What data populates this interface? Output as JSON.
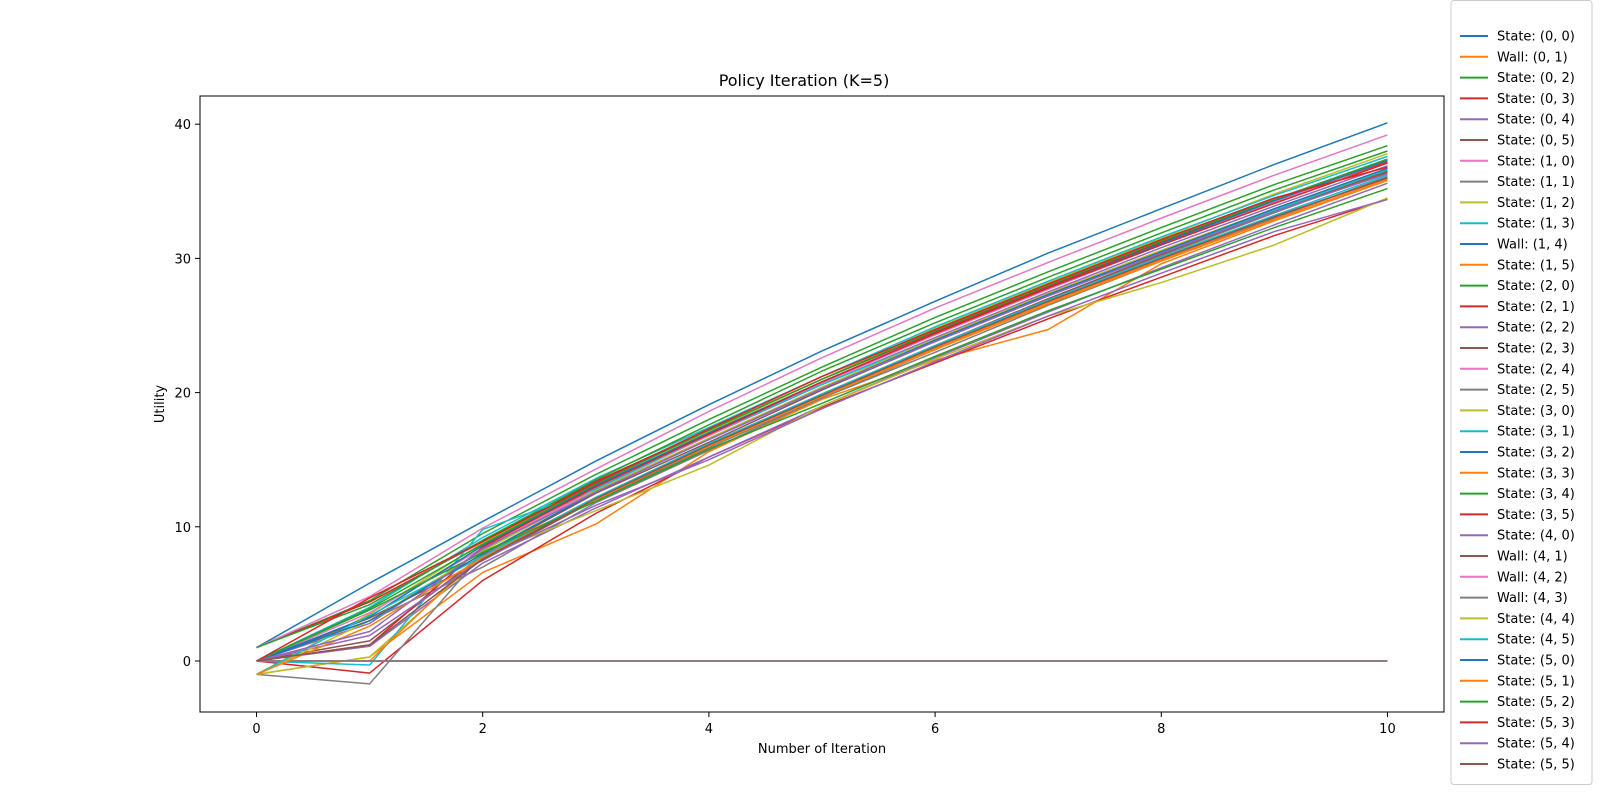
{
  "chart_data": {
    "type": "line",
    "title": "Policy Iteration (K=5)",
    "xlabel": "Number of Iteration",
    "ylabel": "Utility",
    "xlim": [
      -0.5,
      10.5
    ],
    "ylim": [
      -3.8,
      42.1
    ],
    "xticks": [
      0,
      2,
      4,
      6,
      8,
      10
    ],
    "yticks": [
      0,
      10,
      20,
      30,
      40
    ],
    "grid": false,
    "legend_position": "outside-right",
    "x": [
      0,
      1,
      2,
      3,
      4,
      5,
      6,
      7,
      8,
      9,
      10
    ],
    "colors": [
      "#1f77b4",
      "#ff7f0e",
      "#2ca02c",
      "#d62728",
      "#9467bd",
      "#8c564b",
      "#e377c2",
      "#7f7f7f",
      "#bcbd22",
      "#17becf"
    ],
    "series": [
      {
        "name": "State: (0, 0)",
        "values": [
          1.0,
          5.8,
          10.4,
          14.9,
          19.1,
          23.1,
          26.8,
          30.4,
          33.7,
          37.0,
          40.1
        ]
      },
      {
        "name": "Wall: (0, 1)",
        "values": [
          0,
          0,
          0,
          0,
          0,
          0,
          0,
          0,
          0,
          0,
          0
        ]
      },
      {
        "name": "State: (0, 2)",
        "values": [
          1.0,
          4.5,
          9.5,
          13.9,
          18.0,
          21.9,
          25.6,
          29.0,
          32.3,
          35.5,
          38.4
        ]
      },
      {
        "name": "State: (0, 3)",
        "values": [
          1.0,
          4.4,
          8.9,
          13.4,
          17.2,
          21.0,
          24.5,
          27.9,
          31.2,
          34.3,
          37.2
        ]
      },
      {
        "name": "State: (0, 4)",
        "values": [
          0.0,
          2.8,
          8.3,
          12.9,
          16.8,
          20.6,
          24.1,
          27.5,
          30.8,
          33.9,
          36.9
        ]
      },
      {
        "name": "State: (0, 5)",
        "values": [
          0.0,
          1.5,
          7.9,
          12.5,
          16.3,
          20.2,
          23.8,
          27.2,
          30.4,
          33.5,
          36.4
        ]
      },
      {
        "name": "State: (1, 0)",
        "values": [
          1.0,
          4.8,
          9.9,
          14.3,
          18.6,
          22.6,
          26.3,
          29.7,
          33.0,
          36.2,
          39.2
        ]
      },
      {
        "name": "State: (1, 1)",
        "values": [
          0.0,
          3.0,
          7.0,
          11.8,
          15.7,
          19.6,
          23.2,
          26.9,
          30.2,
          33.4,
          36.5
        ]
      },
      {
        "name": "State: (1, 2)",
        "values": [
          -1.0,
          3.5,
          8.8,
          13.3,
          17.1,
          21.0,
          24.8,
          28.2,
          31.5,
          34.8,
          37.8
        ]
      },
      {
        "name": "State: (1, 3)",
        "values": [
          0.0,
          4.0,
          9.2,
          13.6,
          17.4,
          21.2,
          24.9,
          28.3,
          31.6,
          34.7,
          37.6
        ]
      },
      {
        "name": "Wall: (1, 4)",
        "values": [
          0,
          0,
          0,
          0,
          0,
          0,
          0,
          0,
          0,
          0,
          0
        ]
      },
      {
        "name": "State: (1, 5)",
        "values": [
          -1.0,
          0.3,
          6.6,
          10.2,
          15.6,
          19.5,
          22.4,
          24.7,
          29.6,
          32.8,
          35.8
        ]
      },
      {
        "name": "State: (2, 0)",
        "values": [
          1.0,
          4.2,
          9.0,
          13.5,
          17.6,
          21.6,
          25.2,
          28.6,
          31.9,
          35.1,
          38.0
        ]
      },
      {
        "name": "State: (2, 1)",
        "values": [
          0.0,
          -0.9,
          6.0,
          11.0,
          15.2,
          18.9,
          22.2,
          25.5,
          28.6,
          31.7,
          34.4
        ]
      },
      {
        "name": "State: (2, 2)",
        "values": [
          0.0,
          1.1,
          7.3,
          11.4,
          15.2,
          19.0,
          22.6,
          26.0,
          29.3,
          32.5,
          35.6
        ]
      },
      {
        "name": "State: (2, 3)",
        "values": [
          0.0,
          3.2,
          7.5,
          12.0,
          16.0,
          19.9,
          23.5,
          27.0,
          30.3,
          33.5,
          36.5
        ]
      },
      {
        "name": "State: (2, 4)",
        "values": [
          0.0,
          3.6,
          8.4,
          12.8,
          16.8,
          20.7,
          24.3,
          27.7,
          31.0,
          34.2,
          37.3
        ]
      },
      {
        "name": "State: (2, 5)",
        "values": [
          -1.0,
          -1.7,
          8.0,
          11.9,
          15.9,
          19.6,
          23.0,
          26.5,
          29.8,
          33.0,
          36.1
        ]
      },
      {
        "name": "State: (3, 0)",
        "values": [
          -1.0,
          0.3,
          7.8,
          11.2,
          14.6,
          19.0,
          22.5,
          25.7,
          28.2,
          31.0,
          34.5
        ]
      },
      {
        "name": "State: (3, 1)",
        "values": [
          0.0,
          -0.3,
          9.8,
          12.8,
          16.9,
          20.6,
          24.0,
          27.3,
          30.5,
          33.6,
          36.6
        ]
      },
      {
        "name": "State: (3, 2)",
        "values": [
          0.0,
          3.3,
          8.6,
          13.1,
          17.0,
          20.8,
          24.4,
          27.8,
          31.1,
          34.3,
          37.3
        ]
      },
      {
        "name": "State: (3, 3)",
        "values": [
          0.0,
          0.0,
          8.1,
          12.0,
          16.1,
          19.8,
          23.3,
          26.7,
          29.9,
          33.1,
          36.0
        ]
      },
      {
        "name": "State: (3, 4)",
        "values": [
          0.0,
          3.9,
          8.7,
          13.2,
          17.2,
          21.0,
          24.6,
          28.0,
          31.3,
          34.4,
          37.4
        ]
      },
      {
        "name": "State: (3, 5)",
        "values": [
          0.0,
          1.2,
          8.5,
          13.0,
          16.9,
          20.8,
          24.4,
          27.8,
          31.0,
          34.1,
          37.1
        ]
      },
      {
        "name": "State: (4, 0)",
        "values": [
          0.0,
          1.9,
          7.6,
          11.6,
          15.0,
          18.8,
          22.3,
          25.7,
          28.9,
          32.0,
          34.4
        ]
      },
      {
        "name": "Wall: (4, 1)",
        "values": [
          0,
          0,
          0,
          0,
          0,
          0,
          0,
          0,
          0,
          0,
          0
        ]
      },
      {
        "name": "Wall: (4, 2)",
        "values": [
          0,
          0,
          0,
          0,
          0,
          0,
          0,
          0,
          0,
          0,
          0
        ]
      },
      {
        "name": "Wall: (4, 3)",
        "values": [
          0,
          0,
          0,
          0,
          0,
          0,
          0,
          0,
          0,
          0,
          0
        ]
      },
      {
        "name": "State: (4, 4)",
        "values": [
          -1.0,
          3.0,
          8.2,
          12.7,
          16.6,
          20.4,
          24.0,
          27.4,
          30.6,
          33.7,
          36.7
        ]
      },
      {
        "name": "State: (4, 5)",
        "values": [
          -1.0,
          3.4,
          7.8,
          12.2,
          16.2,
          19.9,
          23.5,
          26.9,
          30.1,
          33.2,
          36.2
        ]
      },
      {
        "name": "State: (5, 0)",
        "values": [
          0.0,
          3.0,
          8.0,
          12.6,
          16.5,
          20.3,
          23.9,
          27.3,
          30.5,
          33.7,
          36.7
        ]
      },
      {
        "name": "State: (5, 1)",
        "values": [
          -1.0,
          2.6,
          7.7,
          12.1,
          16.0,
          19.7,
          23.2,
          26.6,
          29.8,
          32.9,
          35.9
        ]
      },
      {
        "name": "State: (5, 2)",
        "values": [
          0.0,
          3.8,
          8.1,
          11.9,
          15.8,
          19.2,
          22.7,
          26.1,
          29.2,
          32.3,
          35.2
        ]
      },
      {
        "name": "State: (5, 3)",
        "values": [
          0.0,
          4.7,
          8.9,
          13.3,
          17.3,
          21.2,
          24.7,
          28.1,
          31.4,
          34.5,
          36.8
        ]
      },
      {
        "name": "State: (5, 4)",
        "values": [
          0.0,
          2.2,
          8.4,
          12.6,
          16.5,
          20.3,
          23.8,
          27.2,
          30.4,
          33.5,
          36.3
        ]
      },
      {
        "name": "State: (5, 5)",
        "values": [
          0.0,
          1.2,
          7.6,
          12.1,
          16.1,
          19.8,
          23.4,
          26.8,
          30.0,
          33.1,
          36.0
        ]
      }
    ]
  }
}
